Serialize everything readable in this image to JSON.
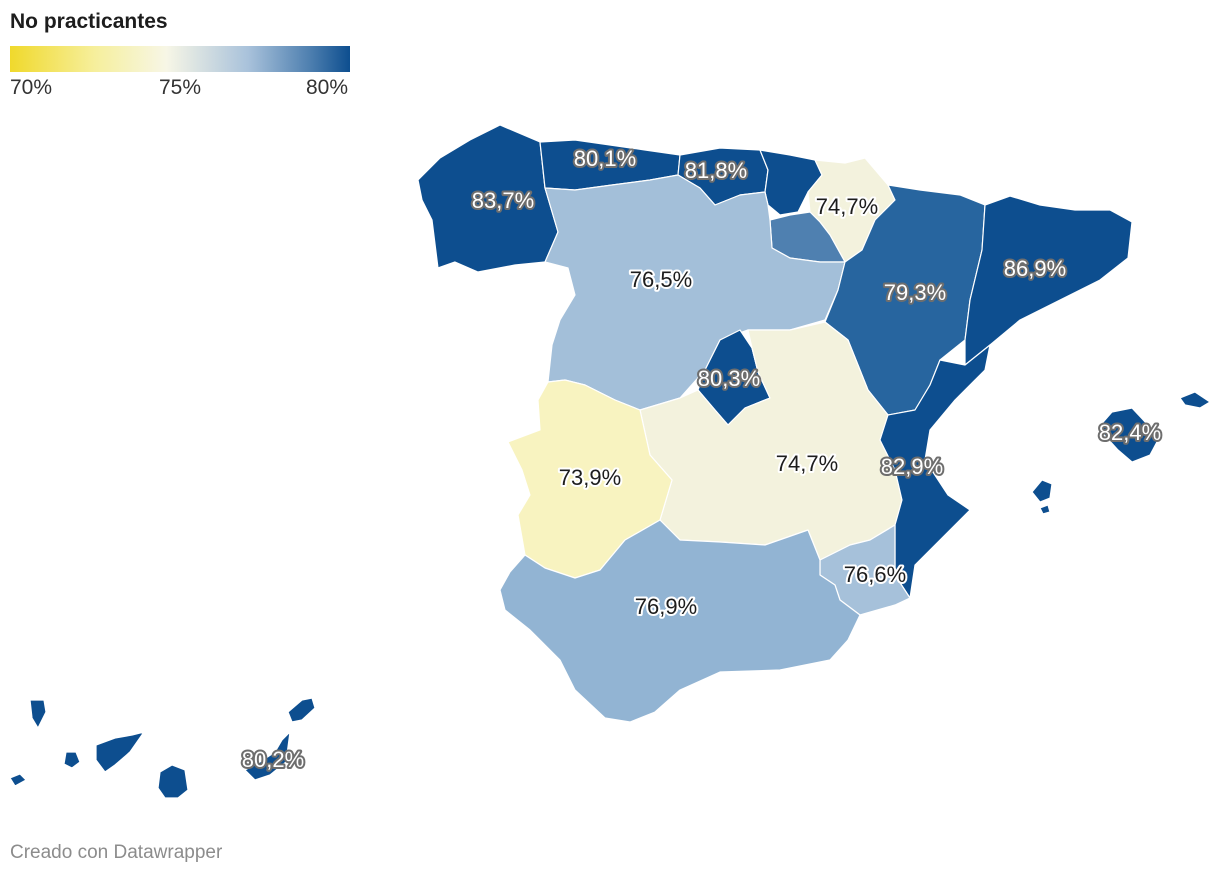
{
  "title": "No practicantes",
  "legend": {
    "ticks": [
      "70%",
      "75%",
      "80%"
    ],
    "scale": {
      "min": 70,
      "mid": 75,
      "max": 80
    },
    "colors": {
      "low": "#f0d92c",
      "mid": "#f7f6e6",
      "high": "#0d4e8f"
    }
  },
  "regions": [
    {
      "name": "Galicia",
      "value": 83.7,
      "label": "83,7%",
      "color": "#0d4e8f"
    },
    {
      "name": "Asturias",
      "value": 80.1,
      "label": "80,1%",
      "color": "#0d4e8f"
    },
    {
      "name": "Cantabria",
      "value": 81.8,
      "label": "81,8%",
      "color": "#0d4e8f"
    },
    {
      "name": "País Vasco",
      "value": null,
      "label": "",
      "color": "#0d4e8f"
    },
    {
      "name": "Navarra",
      "value": 74.7,
      "label": "74,7%",
      "color": "#f3f2dd"
    },
    {
      "name": "La Rioja",
      "value": null,
      "label": "",
      "color": "#4f80b0"
    },
    {
      "name": "Castilla y León",
      "value": 76.5,
      "label": "76,5%",
      "color": "#a3bfd9"
    },
    {
      "name": "Aragón",
      "value": 79.3,
      "label": "79,3%",
      "color": "#27659f"
    },
    {
      "name": "Cataluña",
      "value": 86.9,
      "label": "86,9%",
      "color": "#0d4e8f"
    },
    {
      "name": "Comunidad de Madrid",
      "value": 80.3,
      "label": "80,3%",
      "color": "#0d4e8f"
    },
    {
      "name": "Castilla-La Mancha",
      "value": 74.7,
      "label": "74,7%",
      "color": "#f3f2dd"
    },
    {
      "name": "Extremadura",
      "value": 73.9,
      "label": "73,9%",
      "color": "#f8f3c0"
    },
    {
      "name": "Comunidad Valenciana",
      "value": 82.9,
      "label": "82,9%",
      "color": "#0d4e8f"
    },
    {
      "name": "Región de Murcia",
      "value": 76.6,
      "label": "76,6%",
      "color": "#a6c1da"
    },
    {
      "name": "Andalucía",
      "value": 76.9,
      "label": "76,9%",
      "color": "#92b4d3"
    },
    {
      "name": "Islas Baleares",
      "value": 82.4,
      "label": "82,4%",
      "color": "#0d4e8f"
    },
    {
      "name": "Canarias",
      "value": 80.2,
      "label": "80,2%",
      "color": "#0d4e8f"
    }
  ],
  "footer": "Creado con Datawrapper"
}
